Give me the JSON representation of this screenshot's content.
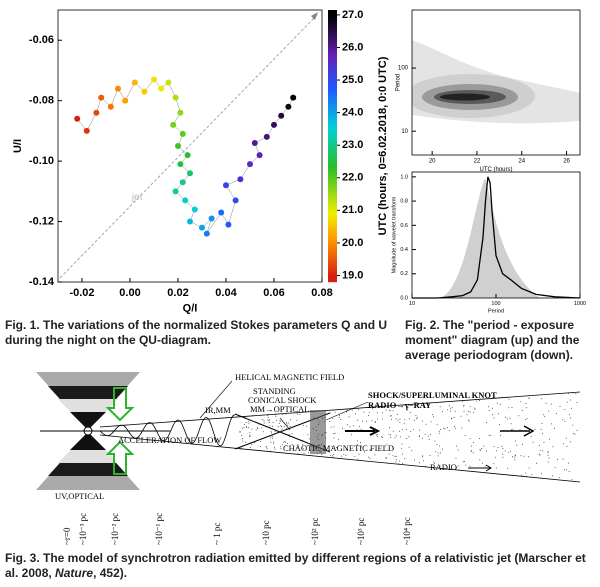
{
  "chart_data": [
    {
      "type": "scatter",
      "xlabel": "Q/I",
      "ylabel": "U/I",
      "annotation": "jet",
      "x": [
        -0.022,
        -0.018,
        -0.014,
        -0.012,
        -0.008,
        -0.005,
        -0.002,
        0.002,
        0.006,
        0.01,
        0.013,
        0.016,
        0.019,
        0.021,
        0.018,
        0.022,
        0.02,
        0.024,
        0.021,
        0.025,
        0.022,
        0.019,
        0.023,
        0.027,
        0.025,
        0.03,
        0.034,
        0.032,
        0.038,
        0.041,
        0.044,
        0.04,
        0.046,
        0.05,
        0.054,
        0.052,
        0.057,
        0.06,
        0.063,
        0.066,
        0.068
      ],
      "y": [
        -0.086,
        -0.09,
        -0.084,
        -0.079,
        -0.082,
        -0.076,
        -0.08,
        -0.074,
        -0.077,
        -0.073,
        -0.076,
        -0.074,
        -0.079,
        -0.084,
        -0.088,
        -0.091,
        -0.095,
        -0.098,
        -0.101,
        -0.104,
        -0.107,
        -0.11,
        -0.113,
        -0.116,
        -0.12,
        -0.122,
        -0.119,
        -0.124,
        -0.117,
        -0.121,
        -0.113,
        -0.108,
        -0.106,
        -0.101,
        -0.098,
        -0.094,
        -0.092,
        -0.088,
        -0.085,
        -0.082,
        -0.079
      ],
      "c": [
        19.0,
        19.2,
        19.4,
        19.6,
        19.8,
        20.0,
        20.2,
        20.4,
        20.6,
        20.8,
        21.0,
        21.2,
        21.4,
        21.6,
        21.8,
        22.0,
        22.2,
        22.4,
        22.6,
        22.8,
        23.0,
        23.2,
        23.4,
        23.6,
        23.8,
        24.0,
        24.2,
        24.4,
        24.6,
        24.8,
        25.0,
        25.2,
        25.4,
        25.6,
        25.8,
        26.0,
        26.2,
        26.4,
        26.6,
        26.8,
        27.0
      ],
      "xlim": [
        -0.03,
        0.08
      ],
      "ylim": [
        -0.14,
        -0.05
      ],
      "xticks": [
        -0.02,
        {
          "value": 0,
          "label": "0.00"
        },
        0.02,
        0.04,
        0.06,
        0.08
      ],
      "yticks": [
        -0.06,
        -0.08,
        {
          "value": -0.1,
          "label": "-0.10"
        },
        -0.12,
        -0.14
      ],
      "colorbar": {
        "label": "UTC (hours, 0=6.02.2018, 0:0 UTC)",
        "lim": [
          18.8,
          27.15
        ],
        "ticks": [
          {
            "value": 19,
            "label": "19.0"
          },
          {
            "value": 20,
            "label": "20.0"
          },
          {
            "value": 21,
            "label": "21.0"
          },
          {
            "value": 22,
            "label": "22.0"
          },
          {
            "value": 23,
            "label": "23.0"
          },
          {
            "value": 24,
            "label": "24.0"
          },
          {
            "value": 25,
            "label": "25.0"
          },
          {
            "value": 26,
            "label": "26.0"
          },
          {
            "value": 27,
            "label": "27.0"
          }
        ]
      }
    },
    {
      "type": "contour",
      "xlabel": "UTC (hours)",
      "ylabel": "Period",
      "xlim": [
        19.1,
        26.6
      ],
      "ylim": [
        4.2,
        830
      ],
      "log_y": true,
      "xticks": [
        20,
        22,
        24,
        26
      ],
      "yticks": [
        10,
        100
      ]
    },
    {
      "type": "line",
      "xlabel": "Period",
      "ylabel": "Magnitude of wavelet transform",
      "x": [
        10,
        20,
        30,
        40,
        50,
        60,
        70,
        75,
        80,
        85,
        90,
        100,
        120,
        150,
        200,
        300,
        500,
        1000
      ],
      "series": [
        {
          "color": "#000000",
          "values": [
            0,
            0,
            0.01,
            0.02,
            0.05,
            0.15,
            0.5,
            0.8,
            1.0,
            0.95,
            0.7,
            0.35,
            0.2,
            0.15,
            0.08,
            0.03,
            0.01,
            0
          ]
        }
      ],
      "xlim": [
        10,
        1000
      ],
      "ylim": [
        0,
        1.04
      ],
      "log_x": true,
      "xticks": [
        10,
        100,
        1000
      ],
      "yticks": [
        {
          "value": 0,
          "label": "0.0"
        },
        {
          "value": 0.2,
          "label": "0.2"
        },
        {
          "value": 0.4,
          "label": "0.4"
        },
        {
          "value": 0.6,
          "label": "0.6"
        },
        {
          "value": 0.8,
          "label": "0.8"
        },
        {
          "value": 1,
          "label": "1.0"
        }
      ]
    }
  ],
  "captions": [
    "Fig. 1. The variations of the normalized Stokes parameters Q and U during the night on the QU-diagram.",
    "Fig. 2. The \"period - exposure moment\" diagram (up) and the average periodogram (down).",
    [
      "Fig. 3. The model of synchrotron radiation emitted by different regions of a relativistic jet (Marscher et al. 2008, ",
      "Nature",
      ", 452)."
    ]
  ],
  "fig3": {
    "labels": {
      "helical": "HELICAL MAGNETIC FIELD",
      "standing": [
        "STANDING",
        "CONICAL SHOCK",
        "MM→OPTICAL"
      ],
      "irmm": "IR,MM",
      "knot": [
        "SHOCK/SUPERLUMINAL KNOT",
        "RADIO→γ−RAY"
      ],
      "acceleration": "ACCELERATION OF FLOW",
      "chaotic": "CHAOTIC MAGNETIC FIELD",
      "radio": "RADIO",
      "uv": "UV,OPTICAL"
    },
    "distances": [
      "~r=0",
      "~10⁻³ pc",
      "~10⁻² pc",
      "~10⁻¹ pc",
      "~ 1 pc",
      "~10 pc",
      "~10² pc",
      "~10³ pc",
      "~10⁴ pc"
    ]
  }
}
